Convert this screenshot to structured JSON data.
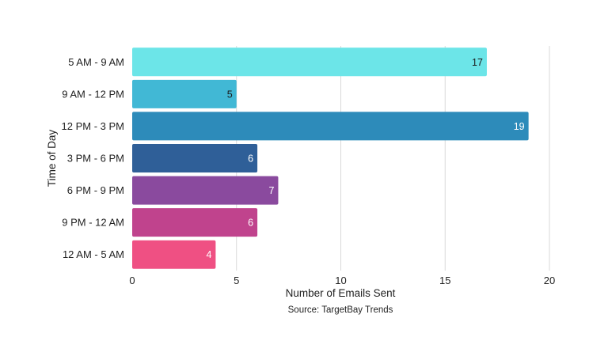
{
  "chart_data": {
    "type": "bar",
    "orientation": "horizontal",
    "categories": [
      "5 AM - 9 AM",
      "9 AM - 12 PM",
      "12 PM - 3 PM",
      "3 PM - 6 PM",
      "6 PM - 9 PM",
      "9 PM - 12 AM",
      "12 AM - 5 AM"
    ],
    "values": [
      17,
      5,
      19,
      6,
      7,
      6,
      4
    ],
    "data_labels": [
      "17",
      "5",
      "19",
      "6",
      "7",
      "6",
      "4"
    ],
    "bar_colors": [
      "#6ce5e8",
      "#41b8d5",
      "#2d8bba",
      "#2f5f98",
      "#8a4a9e",
      "#c0438d",
      "#ef5083"
    ],
    "label_colors": [
      "#1a1a1a",
      "#1a1a1a",
      "#ffffff",
      "#ffffff",
      "#ffffff",
      "#ffffff",
      "#ffffff"
    ],
    "xlabel": "Number of Emails Sent",
    "ylabel": "Time of Day",
    "source": "Source: TargetBay Trends",
    "xlim": [
      0,
      20
    ],
    "xticks": [
      "0",
      "5",
      "10",
      "15",
      "20"
    ],
    "grid": "vertical",
    "legend": "none"
  }
}
